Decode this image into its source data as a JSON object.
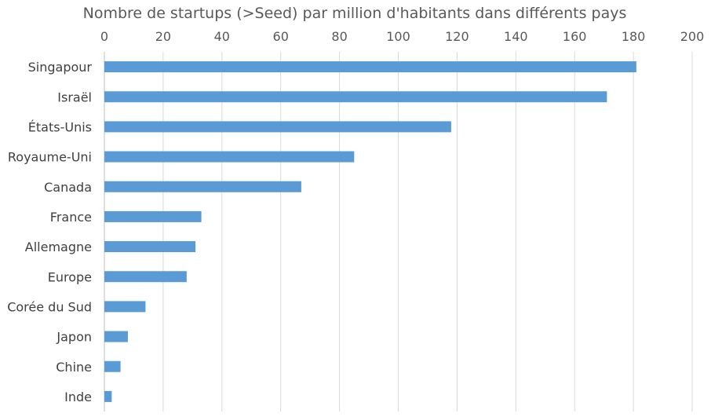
{
  "chart_data": {
    "type": "bar",
    "orientation": "horizontal",
    "title": "Nombre de startups (>Seed) par million d'habitants dans différents pays",
    "xlabel": "",
    "ylabel": "",
    "xlim": [
      0,
      200
    ],
    "x_ticks": [
      "0",
      "20",
      "40",
      "60",
      "80",
      "100",
      "120",
      "140",
      "160",
      "180",
      "200"
    ],
    "x_axis_position": "top",
    "grid": true,
    "legend": "none",
    "categories": [
      "Singapour",
      "Israël",
      "États-Unis",
      "Royaume-Uni",
      "Canada",
      "France",
      "Allemagne",
      "Europe",
      "Corée du Sud",
      "Japon",
      "Chine",
      "Inde"
    ],
    "values": [
      181,
      171,
      118,
      85,
      67,
      33,
      31,
      28,
      14,
      8,
      5.5,
      2.5
    ],
    "colors": {
      "bar": "#5B9BD5",
      "grid": "#D9D9D9",
      "text": "#595959"
    }
  }
}
